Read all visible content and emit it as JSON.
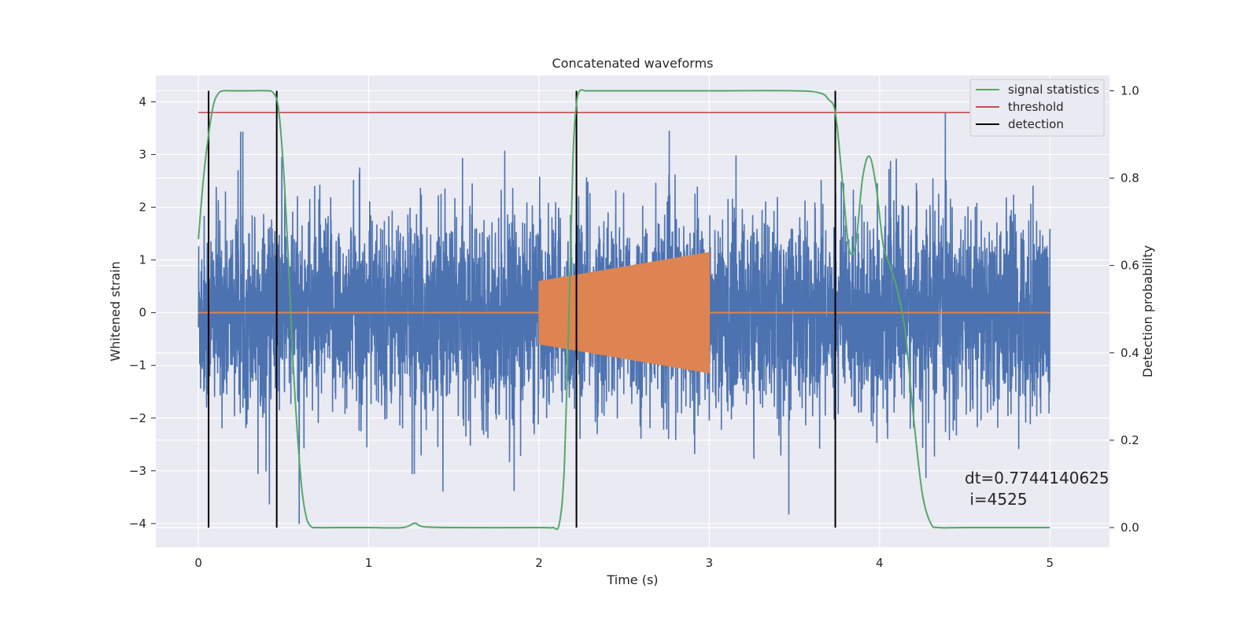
{
  "chart_data": {
    "type": "line",
    "title": "Concatenated waveforms",
    "xlabel": "Time (s)",
    "ylabel": "Whitened strain",
    "y2label": "Detection probability",
    "xlim": [
      -0.25,
      5.35
    ],
    "ylim": [
      -4.45,
      4.5
    ],
    "y2lim": [
      -0.045,
      1.035
    ],
    "xticks": [
      0,
      1,
      2,
      3,
      4,
      5
    ],
    "yticks": [
      -4,
      -3,
      -2,
      -1,
      0,
      1,
      2,
      3,
      4
    ],
    "y2ticks": [
      0.0,
      0.2,
      0.4,
      0.6,
      0.8,
      1.0
    ],
    "y2tick_labels": [
      "0.0",
      "0.2",
      "0.4",
      "0.6",
      "0.8",
      "1.0"
    ],
    "grid": true,
    "legend_position": "top-right",
    "colors": {
      "noise": "#4c72b0",
      "injection": "#dd8452",
      "signal_statistics": "#55a868",
      "threshold": "#c44e52",
      "detection": "#000000",
      "plot_bg": "#eaeaf2"
    },
    "series": [
      {
        "name": "signal statistics",
        "axis": "right",
        "x": [
          0.0,
          0.03,
          0.06,
          0.09,
          0.12,
          0.15,
          0.2,
          0.3,
          0.4,
          0.44,
          0.47,
          0.5,
          0.53,
          0.56,
          0.6,
          0.63,
          0.66,
          0.7,
          0.8,
          1.0,
          1.2,
          1.27,
          1.32,
          1.5,
          2.0,
          2.08,
          2.12,
          2.15,
          2.18,
          2.2,
          2.22,
          2.24,
          2.27,
          2.3,
          2.5,
          3.0,
          3.5,
          3.65,
          3.7,
          3.74,
          3.78,
          3.82,
          3.86,
          3.9,
          3.94,
          3.98,
          4.02,
          4.06,
          4.1,
          4.15,
          4.2,
          4.25,
          4.3,
          4.35,
          4.5,
          5.0
        ],
        "y": [
          0.66,
          0.8,
          0.9,
          0.97,
          0.995,
          1.0,
          1.0,
          1.0,
          1.0,
          0.995,
          0.96,
          0.82,
          0.6,
          0.35,
          0.12,
          0.03,
          0.003,
          0.0,
          0.0,
          0.0,
          0.0,
          0.01,
          0.002,
          0.0,
          0.0,
          0.0,
          0.01,
          0.15,
          0.55,
          0.85,
          0.97,
          1.0,
          1.0,
          1.0,
          1.0,
          1.0,
          1.0,
          0.995,
          0.98,
          0.95,
          0.8,
          0.64,
          0.65,
          0.8,
          0.85,
          0.78,
          0.65,
          0.6,
          0.55,
          0.45,
          0.25,
          0.08,
          0.01,
          0.0,
          0.0,
          0.0
        ]
      },
      {
        "name": "threshold",
        "axis": "right",
        "x": [
          0.0,
          5.0
        ],
        "y": [
          0.95,
          0.95
        ]
      },
      {
        "name": "detection",
        "axis": "right",
        "type": "vlines",
        "x": [
          0.06,
          0.46,
          2.22,
          3.74
        ],
        "ymin": 0.0,
        "ymax": 1.0
      },
      {
        "name": "",
        "axis": "left",
        "type": "noise",
        "x_range": [
          0.0,
          5.0
        ],
        "typical_amplitude": 1.0,
        "max_amplitude": 4.0
      },
      {
        "name": "",
        "axis": "left",
        "type": "chirp",
        "x_range": [
          2.0,
          3.0
        ],
        "amplitude_start": 0.6,
        "amplitude_end": 1.15,
        "baseline": 0
      }
    ],
    "legend": [
      "signal statistics",
      "threshold",
      "detection"
    ],
    "annotation": {
      "line1": "dt=0.7744140625",
      "line2": " i=4525"
    }
  }
}
